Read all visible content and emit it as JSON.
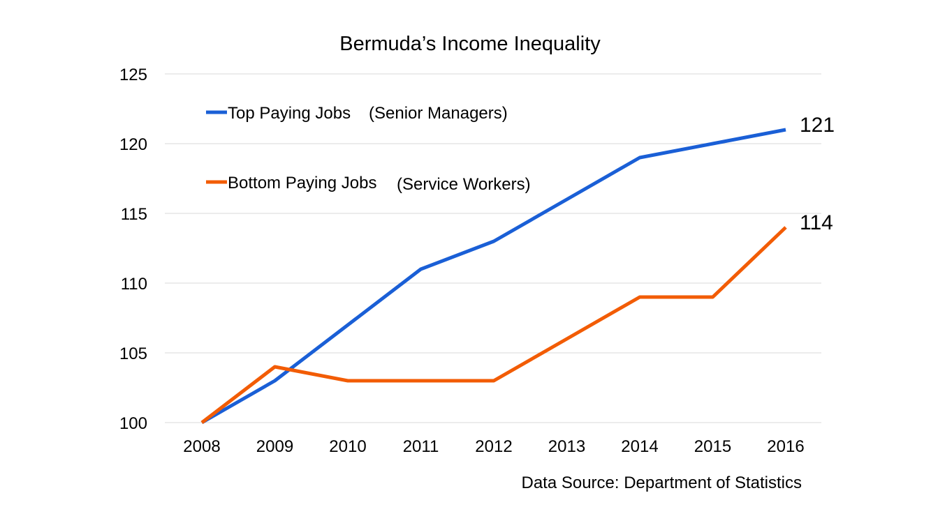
{
  "chart_data": {
    "type": "line",
    "title": "Bermuda’s Income Inequality",
    "xlabel": "",
    "ylabel": "",
    "x": [
      "2008",
      "2009",
      "2010",
      "2011",
      "2012",
      "2013",
      "2014",
      "2015",
      "2016"
    ],
    "ylim": [
      100,
      125
    ],
    "yticks": [
      "100",
      "105",
      "110",
      "115",
      "120",
      "125"
    ],
    "grid": true,
    "legend_placement": "top-left inside plot",
    "series": [
      {
        "name": "Top Paying Jobs",
        "name_suffix": "(Senior Managers)",
        "color": "#1a5fd6",
        "values": [
          100,
          103,
          107,
          111,
          113,
          116,
          119,
          120,
          121
        ],
        "end_label": "121"
      },
      {
        "name": "Bottom Paying Jobs",
        "name_suffix": "(Service Workers)",
        "color": "#f25c05",
        "values": [
          100,
          104,
          103,
          103,
          103,
          106,
          109,
          109,
          114
        ],
        "end_label": "114"
      }
    ],
    "source": "Data Source: Department of Statistics"
  }
}
